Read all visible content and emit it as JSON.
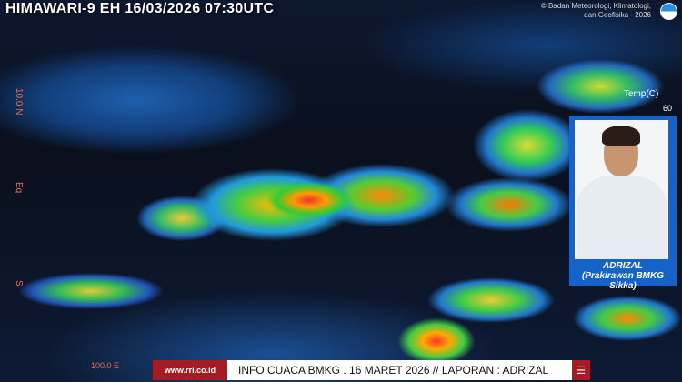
{
  "header": {
    "title": "HIMAWARI-9 EH 16/03/2026  07:30UTC",
    "credit_line1": "© Badan Meteorologi, Klimatologi,",
    "credit_line2": "dan Geofisika -  2026",
    "logo_text": "BMKG"
  },
  "axis": {
    "lat_labels": [
      "10.0 N",
      "Eq",
      "S"
    ],
    "lon_label": "100.0 E"
  },
  "legend": {
    "title": "Temp(C)",
    "top_value": "60"
  },
  "presenter": {
    "name": "ADRIZAL",
    "role": "(Prakirawan BMKG Sikka)"
  },
  "ticker": {
    "site": "www.rri.co.id",
    "text": "INFO CUACA BMKG . 16 MARET 2026 // LAPORAN : ADRIZAL",
    "menu_icon": "menu-icon"
  },
  "colors": {
    "ticker_red": "#a51c24",
    "card_blue": "#1563c8"
  }
}
